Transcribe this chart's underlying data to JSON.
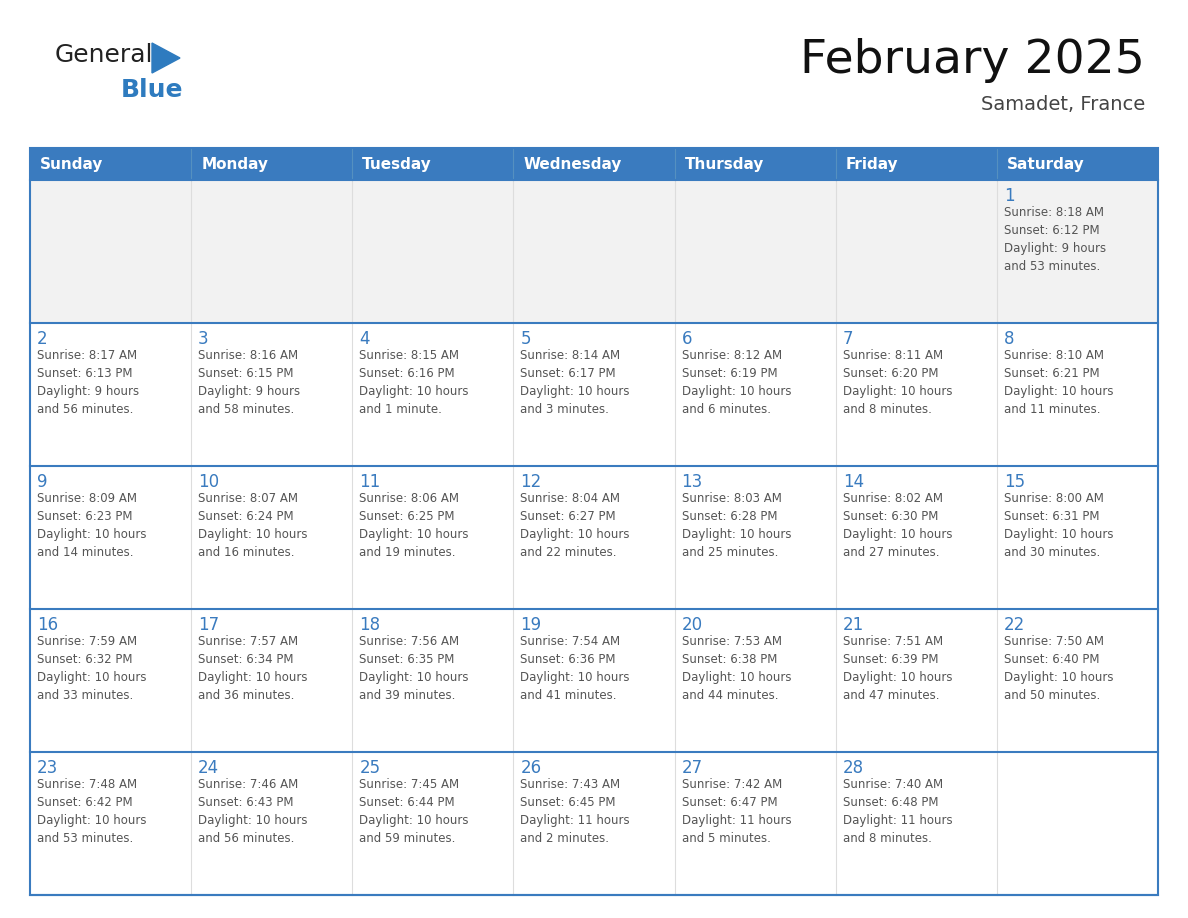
{
  "title": "February 2025",
  "subtitle": "Samadet, France",
  "header_bg": "#3a7bbf",
  "header_text_color": "#ffffff",
  "cell_bg_white": "#ffffff",
  "cell_bg_gray": "#f2f2f2",
  "cell_border_color": "#3a7bbf",
  "cell_line_color": "#cccccc",
  "day_number_color": "#3a7bbf",
  "info_text_color": "#555555",
  "background_color": "#ffffff",
  "days_of_week": [
    "Sunday",
    "Monday",
    "Tuesday",
    "Wednesday",
    "Thursday",
    "Friday",
    "Saturday"
  ],
  "weeks": [
    [
      null,
      null,
      null,
      null,
      null,
      null,
      1
    ],
    [
      2,
      3,
      4,
      5,
      6,
      7,
      8
    ],
    [
      9,
      10,
      11,
      12,
      13,
      14,
      15
    ],
    [
      16,
      17,
      18,
      19,
      20,
      21,
      22
    ],
    [
      23,
      24,
      25,
      26,
      27,
      28,
      null
    ]
  ],
  "sunrise_data": {
    "1": "Sunrise: 8:18 AM\nSunset: 6:12 PM\nDaylight: 9 hours\nand 53 minutes.",
    "2": "Sunrise: 8:17 AM\nSunset: 6:13 PM\nDaylight: 9 hours\nand 56 minutes.",
    "3": "Sunrise: 8:16 AM\nSunset: 6:15 PM\nDaylight: 9 hours\nand 58 minutes.",
    "4": "Sunrise: 8:15 AM\nSunset: 6:16 PM\nDaylight: 10 hours\nand 1 minute.",
    "5": "Sunrise: 8:14 AM\nSunset: 6:17 PM\nDaylight: 10 hours\nand 3 minutes.",
    "6": "Sunrise: 8:12 AM\nSunset: 6:19 PM\nDaylight: 10 hours\nand 6 minutes.",
    "7": "Sunrise: 8:11 AM\nSunset: 6:20 PM\nDaylight: 10 hours\nand 8 minutes.",
    "8": "Sunrise: 8:10 AM\nSunset: 6:21 PM\nDaylight: 10 hours\nand 11 minutes.",
    "9": "Sunrise: 8:09 AM\nSunset: 6:23 PM\nDaylight: 10 hours\nand 14 minutes.",
    "10": "Sunrise: 8:07 AM\nSunset: 6:24 PM\nDaylight: 10 hours\nand 16 minutes.",
    "11": "Sunrise: 8:06 AM\nSunset: 6:25 PM\nDaylight: 10 hours\nand 19 minutes.",
    "12": "Sunrise: 8:04 AM\nSunset: 6:27 PM\nDaylight: 10 hours\nand 22 minutes.",
    "13": "Sunrise: 8:03 AM\nSunset: 6:28 PM\nDaylight: 10 hours\nand 25 minutes.",
    "14": "Sunrise: 8:02 AM\nSunset: 6:30 PM\nDaylight: 10 hours\nand 27 minutes.",
    "15": "Sunrise: 8:00 AM\nSunset: 6:31 PM\nDaylight: 10 hours\nand 30 minutes.",
    "16": "Sunrise: 7:59 AM\nSunset: 6:32 PM\nDaylight: 10 hours\nand 33 minutes.",
    "17": "Sunrise: 7:57 AM\nSunset: 6:34 PM\nDaylight: 10 hours\nand 36 minutes.",
    "18": "Sunrise: 7:56 AM\nSunset: 6:35 PM\nDaylight: 10 hours\nand 39 minutes.",
    "19": "Sunrise: 7:54 AM\nSunset: 6:36 PM\nDaylight: 10 hours\nand 41 minutes.",
    "20": "Sunrise: 7:53 AM\nSunset: 6:38 PM\nDaylight: 10 hours\nand 44 minutes.",
    "21": "Sunrise: 7:51 AM\nSunset: 6:39 PM\nDaylight: 10 hours\nand 47 minutes.",
    "22": "Sunrise: 7:50 AM\nSunset: 6:40 PM\nDaylight: 10 hours\nand 50 minutes.",
    "23": "Sunrise: 7:48 AM\nSunset: 6:42 PM\nDaylight: 10 hours\nand 53 minutes.",
    "24": "Sunrise: 7:46 AM\nSunset: 6:43 PM\nDaylight: 10 hours\nand 56 minutes.",
    "25": "Sunrise: 7:45 AM\nSunset: 6:44 PM\nDaylight: 10 hours\nand 59 minutes.",
    "26": "Sunrise: 7:43 AM\nSunset: 6:45 PM\nDaylight: 11 hours\nand 2 minutes.",
    "27": "Sunrise: 7:42 AM\nSunset: 6:47 PM\nDaylight: 11 hours\nand 5 minutes.",
    "28": "Sunrise: 7:40 AM\nSunset: 6:48 PM\nDaylight: 11 hours\nand 8 minutes."
  },
  "logo_general_color": "#222222",
  "logo_blue_color": "#2e7bbf",
  "logo_triangle_color": "#2e7bbf"
}
